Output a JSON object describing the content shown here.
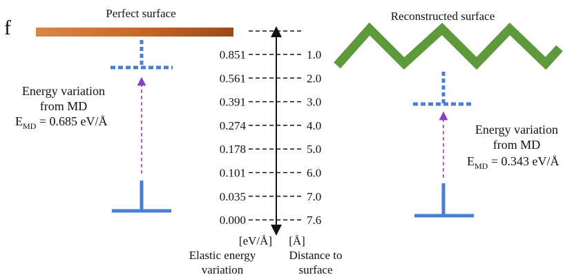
{
  "panel_label": "f",
  "left": {
    "title": "Perfect surface",
    "energy_text_line1": "Energy variation",
    "energy_text_line2": "from MD",
    "emd_main": "E",
    "emd_sub": "MD",
    "emd_value": " = 0.685 eV/Å"
  },
  "right": {
    "title": "Reconstructed surface",
    "energy_text_line1": "Energy variation",
    "energy_text_line2": "from MD",
    "emd_main": "E",
    "emd_sub": "MD",
    "emd_value": " = 0.343 eV/Å"
  },
  "scale": {
    "energy_values": [
      "0.851",
      "0.561",
      "0.391",
      "0.274",
      "0.178",
      "0.101",
      "0.035",
      "0.000"
    ],
    "distance_values": [
      "1.0",
      "2.0",
      "3.0",
      "4.0",
      "5.0",
      "6.0",
      "7.0",
      "7.6"
    ],
    "energy_unit": "[eV/Å]",
    "energy_caption_line1": "Elastic energy",
    "energy_caption_line2": "variation",
    "distance_unit": "[Å]",
    "distance_caption_line1": "Distance to",
    "distance_caption_line2": "surface"
  },
  "colors": {
    "perfect_surface": "#c8692a",
    "reconstructed_surface": "#5e9a3c",
    "md_level": "#4a7fd0",
    "arrow": "#8a3fc0",
    "scale": "#111111"
  }
}
